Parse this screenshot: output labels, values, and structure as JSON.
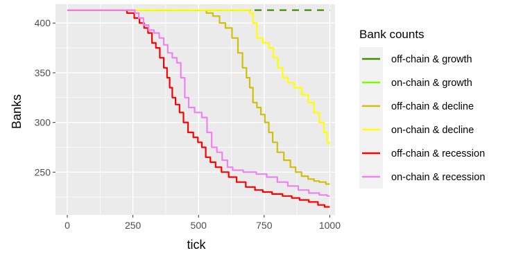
{
  "chart_data": {
    "type": "line",
    "title": "",
    "xlabel": "tick",
    "ylabel": "Banks",
    "xlim": [
      -45,
      1020
    ],
    "ylim": [
      207,
      419
    ],
    "x_ticks": [
      0,
      250,
      500,
      750,
      1000
    ],
    "x_tick_labels": [
      "0",
      "250",
      "500",
      "750",
      "1000"
    ],
    "y_ticks": [
      250,
      300,
      350,
      400
    ],
    "y_tick_labels": [
      "250",
      "300",
      "350",
      "400"
    ],
    "grid": true,
    "panel_background": "#ebebeb",
    "legend": {
      "title": "Bank counts",
      "placement": "right"
    },
    "series": [
      {
        "name": "off-chain & growth",
        "color": "#3e8e00",
        "dash": true,
        "points": [
          [
            0,
            413
          ],
          [
            1000,
            413
          ]
        ]
      },
      {
        "name": "on-chain & growth",
        "color": "#7cfc00",
        "dash": false,
        "points": [
          [
            0,
            413
          ],
          [
            700,
            413
          ]
        ]
      },
      {
        "name": "off-chain & decline",
        "color": "#cdc10a",
        "dash": false,
        "points": [
          [
            0,
            413
          ],
          [
            520,
            413
          ],
          [
            540,
            410
          ],
          [
            570,
            407
          ],
          [
            590,
            400
          ],
          [
            615,
            395
          ],
          [
            640,
            385
          ],
          [
            660,
            370
          ],
          [
            675,
            355
          ],
          [
            690,
            345
          ],
          [
            700,
            335
          ],
          [
            715,
            320
          ],
          [
            730,
            315
          ],
          [
            745,
            308
          ],
          [
            760,
            300
          ],
          [
            775,
            290
          ],
          [
            790,
            280
          ],
          [
            810,
            270
          ],
          [
            840,
            262
          ],
          [
            860,
            255
          ],
          [
            880,
            250
          ],
          [
            905,
            246
          ],
          [
            930,
            243
          ],
          [
            950,
            241
          ],
          [
            970,
            240
          ],
          [
            1000,
            238
          ]
        ]
      },
      {
        "name": "on-chain & decline",
        "color": "#ffff00",
        "dash": false,
        "points": [
          [
            0,
            413
          ],
          [
            690,
            413
          ],
          [
            700,
            410
          ],
          [
            715,
            400
          ],
          [
            730,
            385
          ],
          [
            760,
            380
          ],
          [
            775,
            375
          ],
          [
            795,
            365
          ],
          [
            810,
            355
          ],
          [
            830,
            345
          ],
          [
            850,
            340
          ],
          [
            880,
            335
          ],
          [
            905,
            328
          ],
          [
            930,
            320
          ],
          [
            950,
            310
          ],
          [
            970,
            300
          ],
          [
            985,
            290
          ],
          [
            995,
            280
          ],
          [
            1000,
            278
          ]
        ]
      },
      {
        "name": "off-chain & recession",
        "color": "#ff0000",
        "dash": false,
        "points": [
          [
            0,
            413
          ],
          [
            210,
            413
          ],
          [
            245,
            410
          ],
          [
            265,
            405
          ],
          [
            285,
            400
          ],
          [
            300,
            395
          ],
          [
            315,
            390
          ],
          [
            330,
            380
          ],
          [
            345,
            375
          ],
          [
            360,
            365
          ],
          [
            375,
            355
          ],
          [
            385,
            345
          ],
          [
            395,
            335
          ],
          [
            405,
            325
          ],
          [
            420,
            318
          ],
          [
            435,
            310
          ],
          [
            450,
            300
          ],
          [
            470,
            290
          ],
          [
            490,
            285
          ],
          [
            505,
            280
          ],
          [
            520,
            275
          ],
          [
            535,
            265
          ],
          [
            555,
            260
          ],
          [
            575,
            255
          ],
          [
            600,
            250
          ],
          [
            630,
            245
          ],
          [
            660,
            240
          ],
          [
            700,
            235
          ],
          [
            730,
            232
          ],
          [
            760,
            230
          ],
          [
            800,
            228
          ],
          [
            840,
            226
          ],
          [
            870,
            224
          ],
          [
            900,
            222
          ],
          [
            940,
            220
          ],
          [
            970,
            217
          ],
          [
            990,
            215
          ],
          [
            1000,
            215
          ]
        ]
      },
      {
        "name": "on-chain & recession",
        "color": "#ee82ee",
        "dash": false,
        "points": [
          [
            0,
            413
          ],
          [
            250,
            413
          ],
          [
            265,
            410
          ],
          [
            280,
            405
          ],
          [
            300,
            398
          ],
          [
            320,
            393
          ],
          [
            340,
            390
          ],
          [
            360,
            385
          ],
          [
            375,
            378
          ],
          [
            390,
            370
          ],
          [
            410,
            365
          ],
          [
            425,
            360
          ],
          [
            440,
            345
          ],
          [
            455,
            325
          ],
          [
            470,
            315
          ],
          [
            500,
            310
          ],
          [
            525,
            305
          ],
          [
            540,
            290
          ],
          [
            560,
            275
          ],
          [
            580,
            270
          ],
          [
            600,
            262
          ],
          [
            620,
            255
          ],
          [
            640,
            252
          ],
          [
            700,
            250
          ],
          [
            740,
            248
          ],
          [
            780,
            245
          ],
          [
            820,
            240
          ],
          [
            860,
            236
          ],
          [
            900,
            232
          ],
          [
            940,
            229
          ],
          [
            980,
            227
          ],
          [
            1000,
            226
          ]
        ]
      }
    ]
  }
}
